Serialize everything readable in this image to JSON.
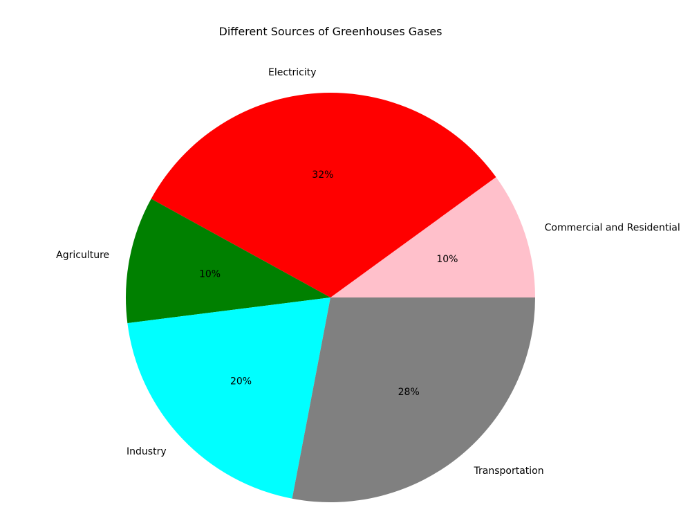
{
  "chart_data": {
    "type": "pie",
    "title": "Different Sources of Greenhouses Gases",
    "slices": [
      {
        "label": "Commercial and Residential",
        "value": 10,
        "pct_label": "10%",
        "color": "#ffc0cb"
      },
      {
        "label": "Electricity",
        "value": 32,
        "pct_label": "32%",
        "color": "#ff0000"
      },
      {
        "label": "Agriculture",
        "value": 10,
        "pct_label": "10%",
        "color": "#008000"
      },
      {
        "label": "Industry",
        "value": 20,
        "pct_label": "20%",
        "color": "#00ffff"
      },
      {
        "label": "Transportation",
        "value": 28,
        "pct_label": "28%",
        "color": "#808080"
      }
    ],
    "start_angle_deg": 0,
    "direction": "counterclockwise",
    "legend": "none"
  }
}
